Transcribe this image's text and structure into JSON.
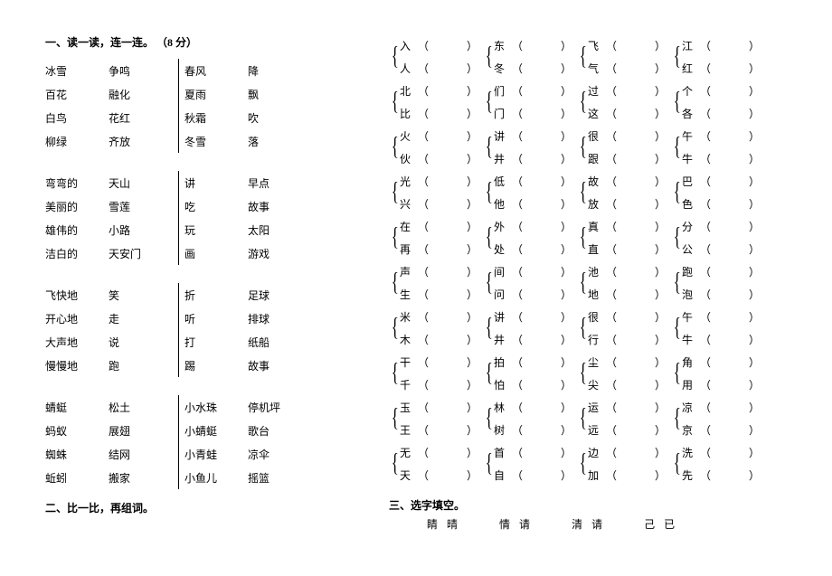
{
  "heading1": "一、读一读，连一连。 （8 分）",
  "heading2": "二、比一比，再组词。",
  "heading3": "三、选字填空。",
  "block1": {
    "rows": [
      {
        "l1": "冰雪",
        "l2": "争鸣",
        "r1": "春风",
        "r2": "降"
      },
      {
        "l1": "百花",
        "l2": "融化",
        "r1": "夏雨",
        "r2": "飘"
      },
      {
        "l1": "白鸟",
        "l2": "花红",
        "r1": "秋霜",
        "r2": "吹"
      },
      {
        "l1": "柳绿",
        "l2": "齐放",
        "r1": "冬雪",
        "r2": "落"
      }
    ]
  },
  "block2": {
    "rows": [
      {
        "l1": "弯弯的",
        "l2": "天山",
        "r1": "讲",
        "r2": "早点"
      },
      {
        "l1": "美丽的",
        "l2": "雪莲",
        "r1": "吃",
        "r2": "故事"
      },
      {
        "l1": "雄伟的",
        "l2": "小路",
        "r1": "玩",
        "r2": "太阳"
      },
      {
        "l1": "洁白的",
        "l2": "天安门",
        "r1": "画",
        "r2": "游戏"
      }
    ]
  },
  "block3": {
    "rows": [
      {
        "l1": "飞快地",
        "l2": "笑",
        "r1": "折",
        "r2": "足球"
      },
      {
        "l1": "开心地",
        "l2": "走",
        "r1": "听",
        "r2": "排球"
      },
      {
        "l1": "大声地",
        "l2": "说",
        "r1": "打",
        "r2": "纸船"
      },
      {
        "l1": "慢慢地",
        "l2": "跑",
        "r1": "踢",
        "r2": "故事"
      }
    ]
  },
  "block4": {
    "rows": [
      {
        "l1": "蜻蜓",
        "l2": "松土",
        "r1": "小水珠",
        "r2": "停机坪"
      },
      {
        "l1": "蚂蚁",
        "l2": "展翅",
        "r1": "小蜻蜓",
        "r2": "歌台"
      },
      {
        "l1": "蜘蛛",
        "l2": "结网",
        "r1": "小青蛙",
        "r2": "凉伞"
      },
      {
        "l1": "蚯蚓",
        "l2": "搬家",
        "r1": "小鱼儿",
        "r2": "摇篮"
      }
    ]
  },
  "compare": [
    [
      [
        "入",
        "人"
      ],
      [
        "东",
        "冬"
      ],
      [
        "飞",
        "气"
      ],
      [
        "江",
        "红"
      ]
    ],
    [
      [
        "北",
        "比"
      ],
      [
        "们",
        "门"
      ],
      [
        "过",
        "这"
      ],
      [
        "个",
        "各"
      ]
    ],
    [
      [
        "火",
        "伙"
      ],
      [
        "讲",
        "井"
      ],
      [
        "很",
        "跟"
      ],
      [
        "午",
        "牛"
      ]
    ],
    [
      [
        "光",
        "兴"
      ],
      [
        "低",
        "他"
      ],
      [
        "故",
        "放"
      ],
      [
        "巴",
        "色"
      ]
    ],
    [
      [
        "在",
        "再"
      ],
      [
        "外",
        "处"
      ],
      [
        "真",
        "直"
      ],
      [
        "分",
        "公"
      ]
    ],
    [
      [
        "声",
        "生"
      ],
      [
        "间",
        "问"
      ],
      [
        "池",
        "地"
      ],
      [
        "跑",
        "泡"
      ]
    ],
    [
      [
        "米",
        "木"
      ],
      [
        "讲",
        "井"
      ],
      [
        "很",
        "行"
      ],
      [
        "午",
        "牛"
      ]
    ],
    [
      [
        "干",
        "千"
      ],
      [
        "拍",
        "怕"
      ],
      [
        "尘",
        "尖"
      ],
      [
        "角",
        "用"
      ]
    ],
    [
      [
        "玉",
        "王"
      ],
      [
        "林",
        "树"
      ],
      [
        "运",
        "远"
      ],
      [
        "凉",
        "京"
      ]
    ],
    [
      [
        "无",
        "天"
      ],
      [
        "首",
        "自"
      ],
      [
        "边",
        "加"
      ],
      [
        "洗",
        "先"
      ]
    ]
  ],
  "zici": [
    [
      "睛",
      "晴"
    ],
    [
      "情",
      "请"
    ],
    [
      "清",
      "请"
    ],
    [
      "己",
      "已"
    ]
  ]
}
